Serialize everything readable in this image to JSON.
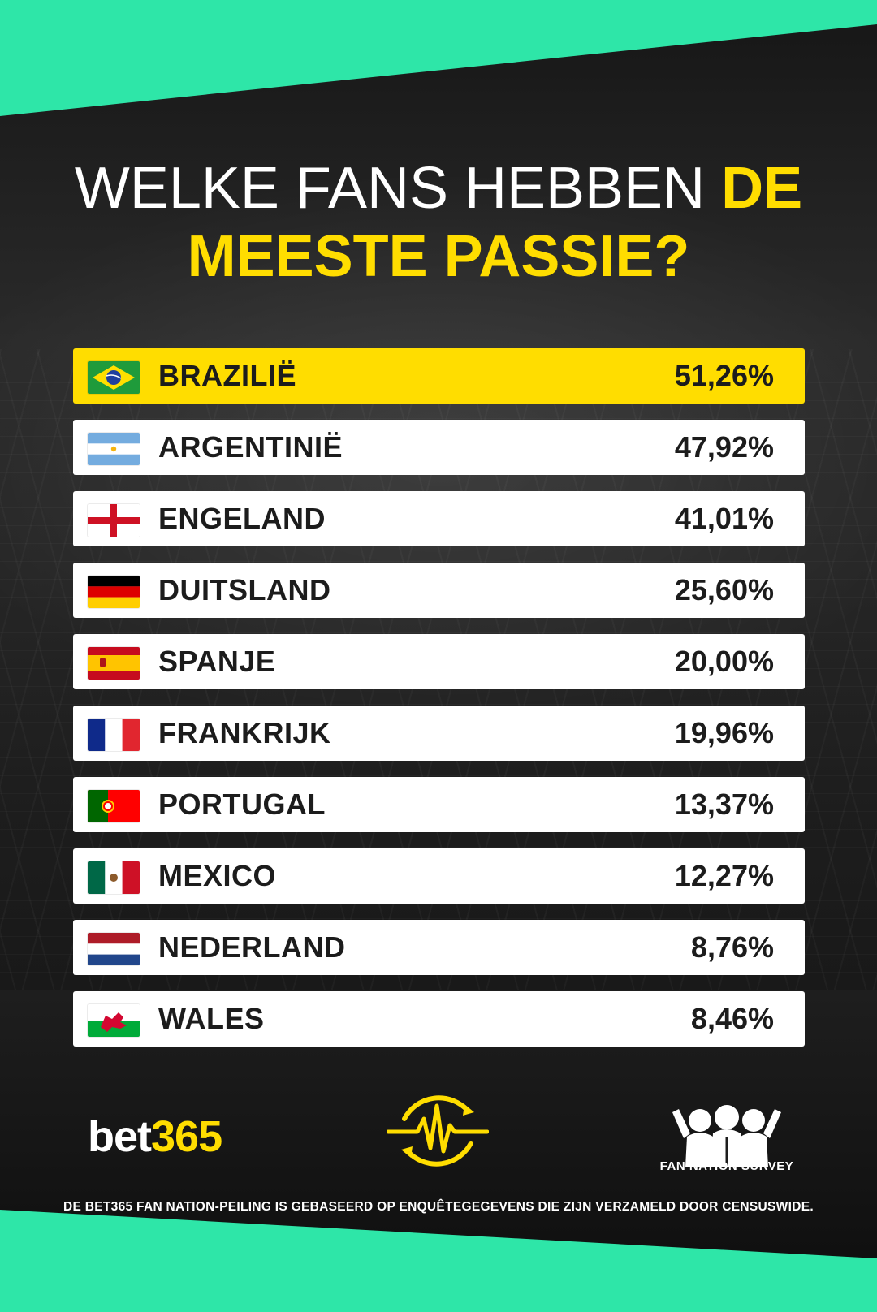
{
  "header": {
    "title_part1": "WELKE FANS HEBBEN",
    "title_part2": "DE",
    "title_line2": "MEESTE PASSIE?"
  },
  "colors": {
    "highlight": "#ffdd00",
    "accent_band": "#2ee6a8",
    "row_background": "#ffffff"
  },
  "chart_data": {
    "type": "table",
    "title": "WELKE FANS HEBBEN DE MEESTE PASSIE?",
    "categories": [
      "BRAZILIË",
      "ARGENTINIË",
      "ENGELAND",
      "DUITSLAND",
      "SPANJE",
      "FRANKRIJK",
      "PORTUGAL",
      "MEXICO",
      "NEDERLAND",
      "WALES"
    ],
    "values": [
      51.26,
      47.92,
      41.01,
      25.6,
      20.0,
      19.96,
      13.37,
      12.27,
      8.76,
      8.46
    ],
    "rows": [
      {
        "country": "BRAZILIË",
        "value": "51,26%",
        "flag": "brazil-flag-icon"
      },
      {
        "country": "ARGENTINIË",
        "value": "47,92%",
        "flag": "argentina-flag-icon"
      },
      {
        "country": "ENGELAND",
        "value": "41,01%",
        "flag": "england-flag-icon"
      },
      {
        "country": "DUITSLAND",
        "value": "25,60%",
        "flag": "germany-flag-icon"
      },
      {
        "country": "SPANJE",
        "value": "20,00%",
        "flag": "spain-flag-icon"
      },
      {
        "country": "FRANKRIJK",
        "value": "19,96%",
        "flag": "france-flag-icon"
      },
      {
        "country": "PORTUGAL",
        "value": "13,37%",
        "flag": "portugal-flag-icon"
      },
      {
        "country": "MEXICO",
        "value": "12,27%",
        "flag": "mexico-flag-icon"
      },
      {
        "country": "NEDERLAND",
        "value": "8,76%",
        "flag": "netherlands-flag-icon"
      },
      {
        "country": "WALES",
        "value": "8,46%",
        "flag": "wales-flag-icon"
      }
    ]
  },
  "footer": {
    "logo_part1": "bet",
    "logo_part2": "365",
    "pulse_icon": "heartbeat-icon",
    "survey_icon": "fans-group-icon",
    "survey_label": "FAN NATION SURVEY",
    "disclaimer": "DE BET365 FAN NATION-PEILING IS GEBASEERD OP ENQUÊTEGEGEVENS DIE ZIJN VERZAMELD DOOR CENSUSWIDE."
  }
}
